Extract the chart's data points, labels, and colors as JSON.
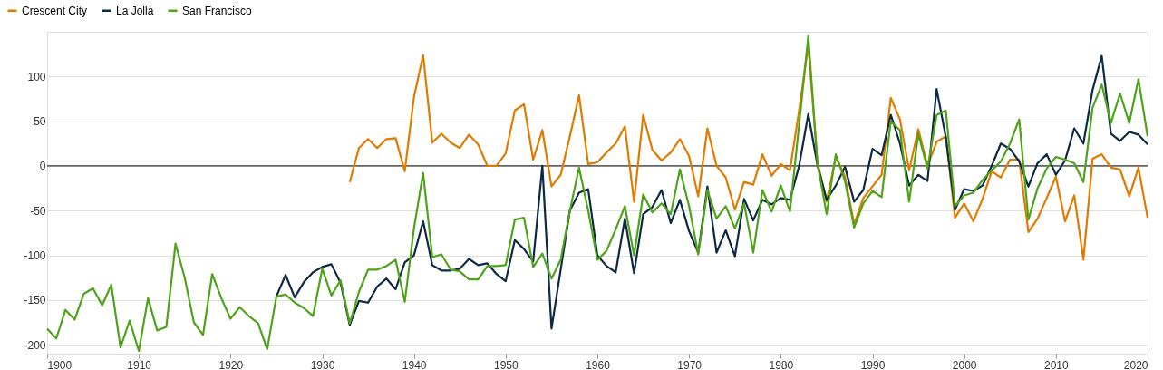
{
  "chart_data": {
    "type": "line",
    "legend": "top left",
    "grid": "y",
    "line_style": "solid",
    "marker": "none",
    "xlim": [
      1900,
      2020
    ],
    "xticks": [
      1900,
      1910,
      1920,
      1930,
      1940,
      1950,
      1960,
      1970,
      1980,
      1990,
      2000,
      2010,
      2020
    ],
    "ylim": [
      -210,
      150
    ],
    "yticks": [
      -200,
      -150,
      -100,
      -50,
      0,
      50,
      100
    ],
    "ref_lines": [
      {
        "axis": "y",
        "value": 0,
        "color": "#333333"
      }
    ],
    "series": [
      {
        "name": "Crescent City",
        "color": "#e07b00",
        "x": [
          1933,
          1934,
          1935,
          1936,
          1937,
          1938,
          1939,
          1940,
          1941,
          1942,
          1943,
          1944,
          1945,
          1946,
          1947,
          1948,
          1949,
          1950,
          1951,
          1952,
          1953,
          1954,
          1955,
          1956,
          1957,
          1958,
          1959,
          1960,
          1961,
          1962,
          1963,
          1964,
          1965,
          1966,
          1967,
          1968,
          1969,
          1970,
          1971,
          1972,
          1973,
          1974,
          1975,
          1976,
          1977,
          1978,
          1979,
          1980,
          1981,
          1982,
          1983,
          1984,
          1985,
          1986,
          1987,
          1988,
          1989,
          1990,
          1991,
          1992,
          1993,
          1994,
          1995,
          1996,
          1997,
          1998,
          1999,
          2000,
          2001,
          2002,
          2003,
          2004,
          2005,
          2006,
          2007,
          2008,
          2009,
          2010,
          2011,
          2012,
          2013,
          2014,
          2015,
          2016,
          2017,
          2018,
          2019,
          2020
        ],
        "values": [
          -18,
          20,
          30,
          20,
          30,
          31,
          -6,
          77,
          124,
          26,
          36,
          26,
          20,
          35,
          24,
          0,
          0,
          14,
          62,
          69,
          7,
          40,
          -23,
          -10,
          33,
          79,
          2,
          4,
          15,
          25,
          44,
          -40,
          57,
          18,
          6,
          15,
          30,
          11,
          -34,
          42,
          0,
          -13,
          -49,
          -18,
          -21,
          13,
          -11,
          2,
          -5,
          62,
          135,
          4,
          -40,
          10,
          -12,
          -65,
          -36,
          -23,
          -10,
          76,
          52,
          -5,
          41,
          0,
          27,
          33,
          -58,
          -42,
          -62,
          -37,
          -6,
          -13,
          7,
          7,
          -74,
          -59,
          -36,
          -12,
          -62,
          -33,
          -105,
          8,
          13,
          -2,
          -4,
          -34,
          -2,
          -58
        ]
      },
      {
        "name": "La Jolla",
        "color": "#0d2a45",
        "x": [
          1925,
          1926,
          1927,
          1928,
          1929,
          1930,
          1931,
          1932,
          1933,
          1934,
          1935,
          1936,
          1937,
          1938,
          1939,
          1940,
          1941,
          1942,
          1943,
          1944,
          1945,
          1946,
          1947,
          1948,
          1949,
          1950,
          1951,
          1952,
          1953,
          1954,
          1955,
          1956,
          1957,
          1958,
          1959,
          1960,
          1961,
          1962,
          1963,
          1964,
          1965,
          1966,
          1967,
          1968,
          1969,
          1970,
          1971,
          1972,
          1973,
          1974,
          1975,
          1976,
          1977,
          1978,
          1979,
          1980,
          1981,
          1982,
          1983,
          1984,
          1985,
          1986,
          1987,
          1988,
          1989,
          1990,
          1991,
          1992,
          1993,
          1994,
          1995,
          1996,
          1997,
          1998,
          1999,
          2000,
          2001,
          2002,
          2003,
          2004,
          2005,
          2006,
          2007,
          2008,
          2009,
          2010,
          2011,
          2012,
          2013,
          2014,
          2015,
          2016,
          2017,
          2018,
          2019,
          2020
        ],
        "values": [
          -146,
          -122,
          -147,
          -130,
          -119,
          -113,
          -110,
          -131,
          -178,
          -151,
          -153,
          -135,
          -126,
          -138,
          -108,
          -100,
          -62,
          -111,
          -117,
          -117,
          -115,
          -104,
          -111,
          -109,
          -121,
          -129,
          -83,
          -93,
          -107,
          0,
          -182,
          -116,
          -50,
          -30,
          -26,
          -100,
          -112,
          -119,
          -59,
          -120,
          -54,
          -46,
          -27,
          -64,
          -38,
          -73,
          -97,
          -23,
          -97,
          -72,
          -101,
          -37,
          -61,
          -38,
          -43,
          -36,
          -38,
          0,
          58,
          1,
          -38,
          -22,
          -1,
          -40,
          -27,
          19,
          12,
          57,
          25,
          -22,
          -10,
          -17,
          86,
          32,
          -49,
          -26,
          -28,
          -22,
          0,
          25,
          19,
          5,
          -23,
          3,
          13,
          -10,
          6,
          42,
          25,
          85,
          123,
          36,
          28,
          38,
          35,
          24
        ]
      },
      {
        "name": "San Francisco",
        "color": "#4fa31a",
        "x": [
          1900,
          1901,
          1902,
          1903,
          1904,
          1905,
          1906,
          1907,
          1908,
          1909,
          1910,
          1911,
          1912,
          1913,
          1914,
          1915,
          1916,
          1917,
          1918,
          1919,
          1920,
          1921,
          1922,
          1923,
          1924,
          1925,
          1926,
          1927,
          1928,
          1929,
          1930,
          1931,
          1932,
          1933,
          1934,
          1935,
          1936,
          1937,
          1938,
          1939,
          1940,
          1941,
          1942,
          1943,
          1944,
          1945,
          1946,
          1947,
          1948,
          1949,
          1950,
          1951,
          1952,
          1953,
          1954,
          1955,
          1956,
          1957,
          1958,
          1959,
          1960,
          1961,
          1962,
          1963,
          1964,
          1965,
          1966,
          1967,
          1968,
          1969,
          1970,
          1971,
          1972,
          1973,
          1974,
          1975,
          1976,
          1977,
          1978,
          1979,
          1980,
          1981,
          1982,
          1983,
          1984,
          1985,
          1986,
          1987,
          1988,
          1989,
          1990,
          1991,
          1992,
          1993,
          1994,
          1995,
          1996,
          1997,
          1998,
          1999,
          2000,
          2001,
          2002,
          2003,
          2004,
          2005,
          2006,
          2007,
          2008,
          2009,
          2010,
          2011,
          2012,
          2013,
          2014,
          2015,
          2016,
          2017,
          2018,
          2019,
          2020
        ],
        "values": [
          -182,
          -193,
          -161,
          -172,
          -143,
          -137,
          -156,
          -133,
          -203,
          -173,
          -207,
          -148,
          -184,
          -180,
          -87,
          -125,
          -175,
          -189,
          -121,
          -148,
          -171,
          -158,
          -168,
          -176,
          -205,
          -146,
          -144,
          -153,
          -159,
          -168,
          -115,
          -145,
          -128,
          -176,
          -141,
          -116,
          -116,
          -112,
          -105,
          -152,
          -70,
          -8,
          -102,
          -99,
          -116,
          -118,
          -127,
          -127,
          -112,
          -112,
          -111,
          -60,
          -58,
          -113,
          -98,
          -126,
          -105,
          -50,
          -2,
          -50,
          -105,
          -95,
          -71,
          -45,
          -100,
          -32,
          -52,
          -42,
          -54,
          -4,
          -45,
          -99,
          -27,
          -59,
          -45,
          -70,
          -42,
          -97,
          -27,
          -51,
          -22,
          -51,
          46,
          145,
          3,
          -54,
          13,
          -17,
          -69,
          -42,
          -28,
          -35,
          50,
          40,
          -40,
          36,
          -3,
          57,
          62,
          -45,
          -33,
          -30,
          -16,
          -5,
          5,
          25,
          52,
          -60,
          -25,
          -3,
          10,
          7,
          3,
          -18,
          65,
          91,
          48,
          81,
          48,
          97,
          33
        ]
      }
    ]
  }
}
